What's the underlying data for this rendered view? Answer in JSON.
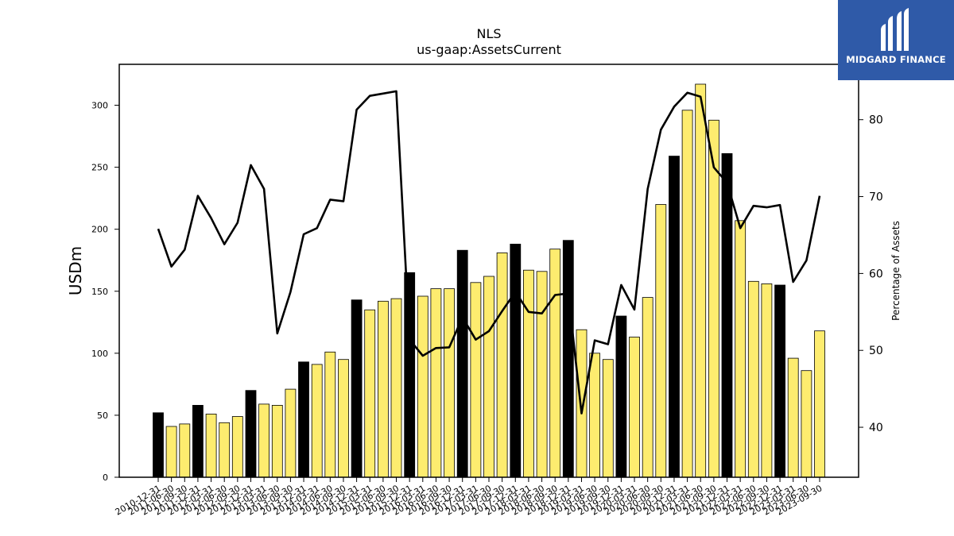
{
  "logo": {
    "text": "MIDGARD FINANCE",
    "icon": "midgard-logo-icon",
    "color": "#2f5aa8"
  },
  "chart_data": {
    "type": "bar+line",
    "title": "NLS",
    "subtitle": "us-gaap:AssetsCurrent",
    "ylabel": "USDm",
    "y2label": "Percentage of Assets",
    "ylim": [
      0,
      333
    ],
    "y2lim": [
      33.5,
      87.2
    ],
    "yticks": [
      0,
      50,
      100,
      150,
      200,
      250,
      300
    ],
    "y2ticks": [
      40,
      50,
      60,
      70,
      80
    ],
    "grid": false,
    "colors": {
      "bar_q4": "#000000",
      "bar_other": "#fdec6f",
      "line": "#000000"
    },
    "categories": [
      "2010-12-31",
      "2011-06-30",
      "2011-09-30",
      "2011-12-31",
      "2012-03-31",
      "2012-06-30",
      "2012-09-30",
      "2012-12-31",
      "2013-03-31",
      "2013-06-30",
      "2013-09-30",
      "2013-12-31",
      "2014-03-31",
      "2014-06-30",
      "2014-09-30",
      "2014-12-31",
      "2015-03-31",
      "2015-06-30",
      "2015-09-30",
      "2015-12-31",
      "2016-03-31",
      "2016-06-30",
      "2016-09-30",
      "2016-12-31",
      "2017-03-31",
      "2017-06-30",
      "2017-09-30",
      "2017-12-31",
      "2018-03-31",
      "2018-06-30",
      "2018-09-30",
      "2018-12-31",
      "2019-03-31",
      "2019-06-30",
      "2019-09-30",
      "2019-12-31",
      "2020-03-31",
      "2020-06-30",
      "2020-09-30",
      "2020-12-31",
      "2021-03-31",
      "2021-06-30",
      "2021-09-30",
      "2021-12-31",
      "2022-03-31",
      "2022-06-30",
      "2022-09-30",
      "2022-12-31",
      "2023-03-31",
      "2023-06-30",
      "2023-09-30"
    ],
    "series": [
      {
        "kind": "bar",
        "values": [
          52,
          41,
          43,
          58,
          51,
          44,
          49,
          70,
          59,
          58,
          71,
          93,
          91,
          101,
          95,
          143,
          135,
          142,
          144,
          165,
          146,
          152,
          152,
          183,
          157,
          162,
          181,
          188,
          167,
          166,
          184,
          191,
          119,
          100,
          95,
          130,
          113,
          145,
          220,
          259,
          296,
          317,
          288,
          261,
          207,
          158,
          156,
          155,
          96,
          86,
          118
        ]
      },
      {
        "kind": "line",
        "axis": "right",
        "values": [
          65.8,
          60.9,
          63.1,
          70.1,
          67.2,
          63.8,
          66.6,
          74.1,
          71.0,
          52.2,
          57.6,
          65.1,
          65.9,
          69.6,
          69.4,
          81.3,
          83.1,
          83.4,
          83.7,
          51.4,
          49.3,
          50.3,
          50.4,
          54.3,
          51.4,
          52.5,
          55.1,
          57.6,
          55.0,
          54.8,
          57.2,
          57.4,
          41.8,
          51.3,
          50.8,
          58.5,
          55.3,
          71.0,
          78.7,
          81.7,
          83.5,
          83.0,
          73.8,
          71.8,
          65.9,
          68.8,
          68.6,
          68.9,
          58.9,
          61.7,
          70.1
        ]
      }
    ]
  }
}
